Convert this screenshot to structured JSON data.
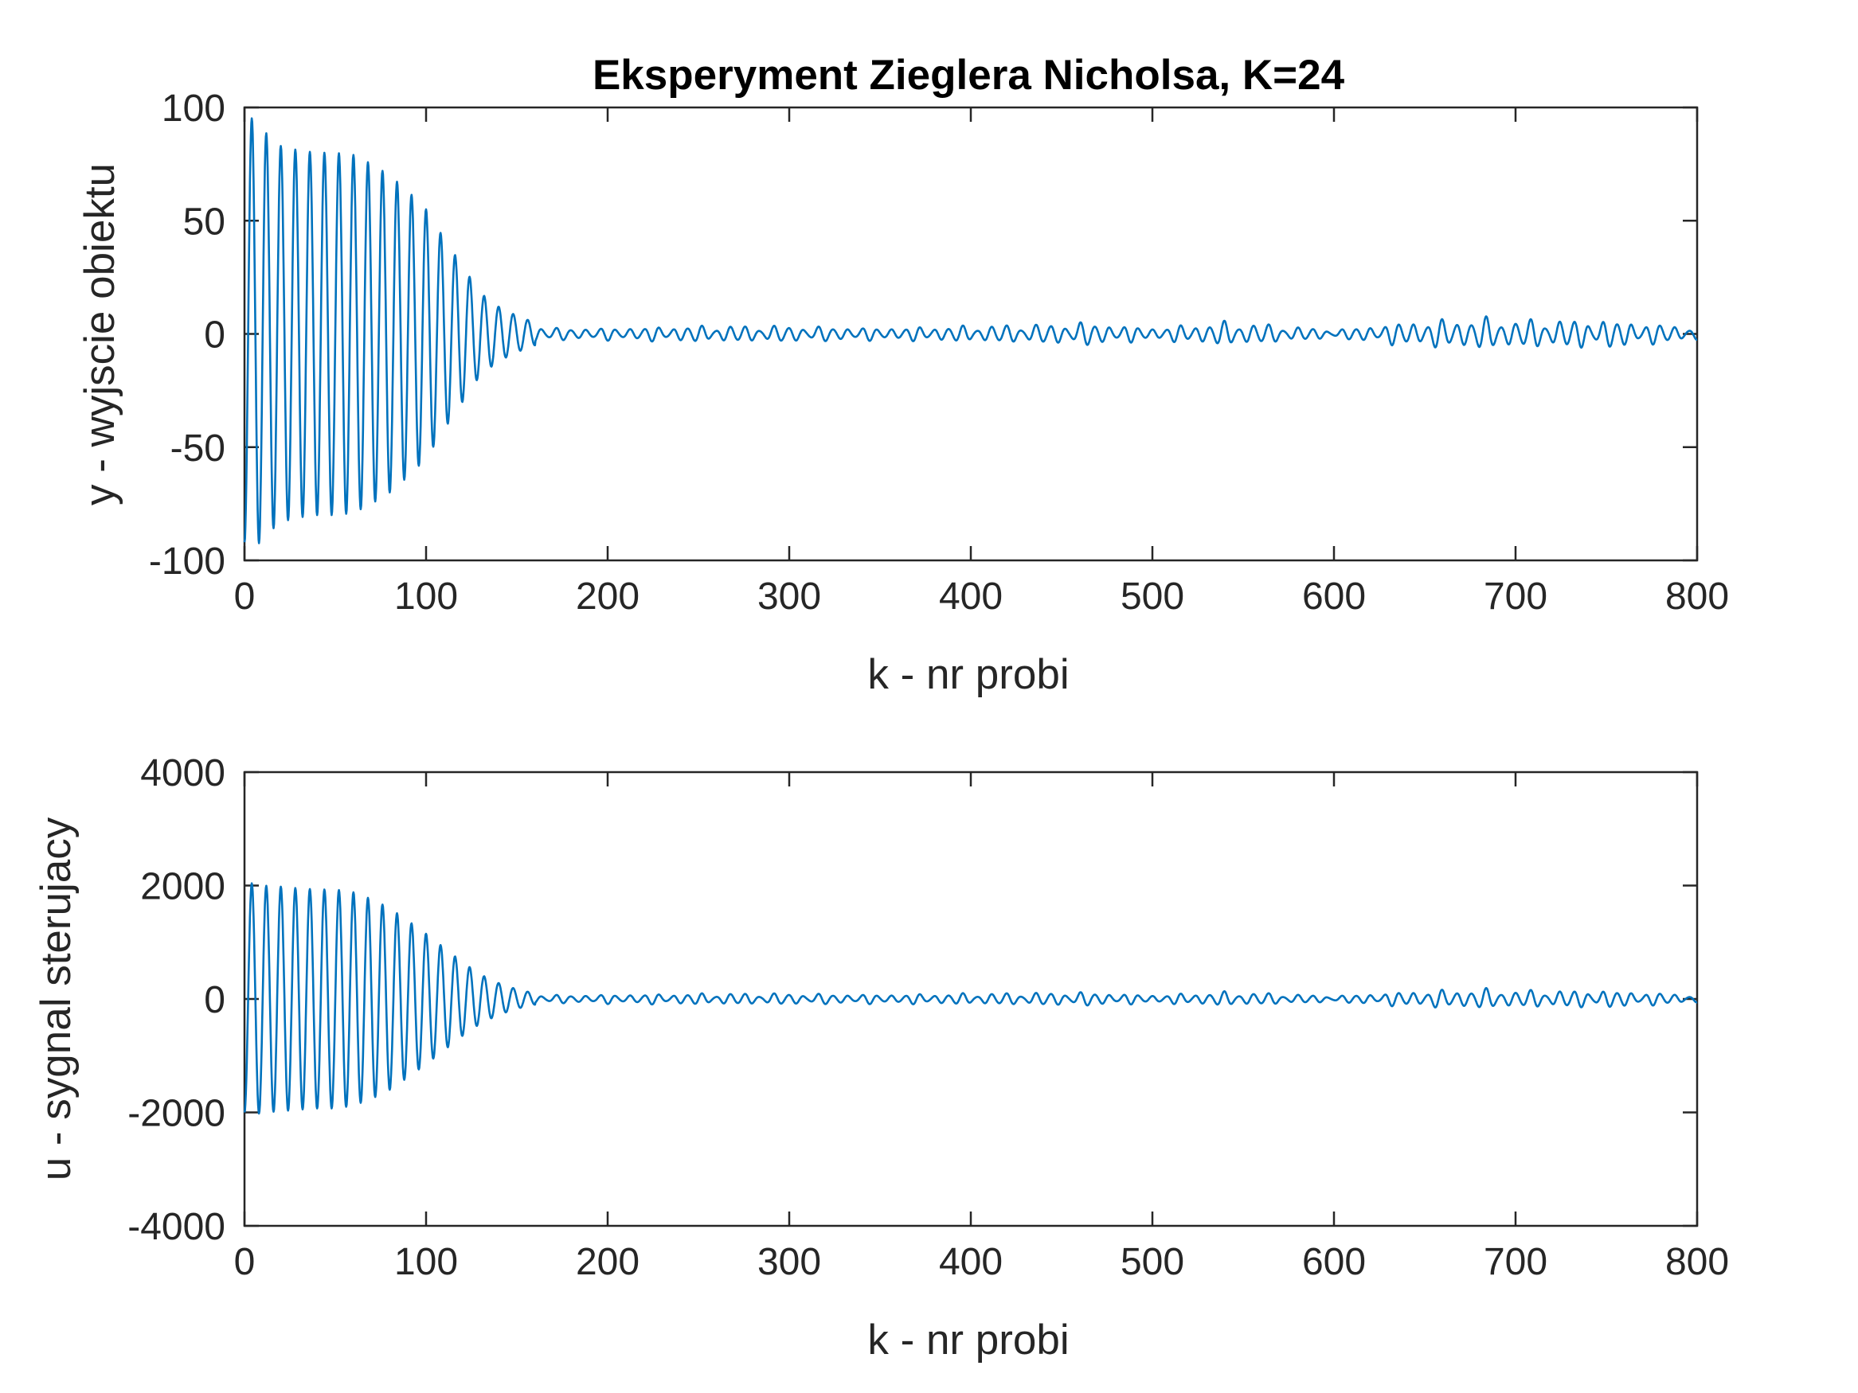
{
  "chart_data": [
    {
      "type": "line",
      "title": "Eksperyment Zieglera Nicholsa, K=24",
      "xlabel": "k - nr probi",
      "ylabel": "y - wyjscie obiektu",
      "xlim": [
        0,
        800
      ],
      "ylim": [
        -100,
        100
      ],
      "xticks": [
        "0",
        "100",
        "200",
        "300",
        "400",
        "500",
        "600",
        "700",
        "800"
      ],
      "yticks": [
        "-100",
        "-50",
        "0",
        "50",
        "100"
      ],
      "grid": false,
      "oscillation_period_samples": 8,
      "series": [
        {
          "color": "#0072BD",
          "envelope_k": [
            0,
            5,
            10,
            20,
            30,
            40,
            50,
            60,
            70,
            80,
            90,
            100,
            110,
            120,
            130,
            140,
            150,
            160,
            170,
            200,
            250,
            300,
            350,
            400,
            450,
            460,
            500,
            540,
            560,
            600,
            640,
            680,
            700,
            750,
            790,
            800
          ],
          "envelope_amplitude": [
            92,
            96,
            90,
            83,
            81,
            80,
            80,
            79,
            75,
            70,
            63,
            55,
            42,
            30,
            18,
            12,
            8,
            5,
            3,
            3,
            4,
            4,
            3,
            4,
            5,
            6,
            3,
            6,
            5,
            2,
            6,
            8,
            7,
            7,
            4,
            3
          ]
        }
      ]
    },
    {
      "type": "line",
      "title": "",
      "xlabel": "k - nr probi",
      "ylabel": "u - sygnal sterujacy",
      "xlim": [
        0,
        800
      ],
      "ylim": [
        -4000,
        4000
      ],
      "xticks": [
        "0",
        "100",
        "200",
        "300",
        "400",
        "500",
        "600",
        "700",
        "800"
      ],
      "yticks": [
        "-4000",
        "-2000",
        "0",
        "2000",
        "4000"
      ],
      "grid": false,
      "oscillation_period_samples": 8,
      "series": [
        {
          "color": "#0072BD",
          "envelope_k": [
            0,
            5,
            10,
            20,
            30,
            40,
            50,
            60,
            70,
            80,
            90,
            100,
            110,
            120,
            130,
            140,
            150,
            160,
            170,
            200,
            250,
            300,
            350,
            400,
            450,
            460,
            500,
            540,
            560,
            600,
            640,
            680,
            700,
            750,
            790,
            800
          ],
          "envelope_amplitude": [
            2000,
            2050,
            2000,
            1980,
            1950,
            1930,
            1930,
            1880,
            1760,
            1600,
            1380,
            1150,
            900,
            650,
            430,
            280,
            170,
            100,
            80,
            90,
            110,
            110,
            90,
            110,
            130,
            140,
            80,
            140,
            120,
            60,
            150,
            200,
            170,
            170,
            100,
            70
          ]
        }
      ]
    }
  ]
}
